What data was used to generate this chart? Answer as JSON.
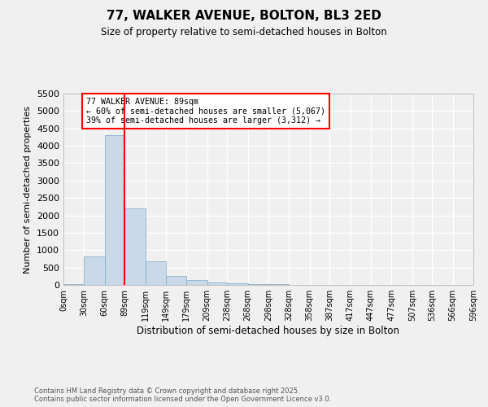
{
  "title": "77, WALKER AVENUE, BOLTON, BL3 2ED",
  "subtitle": "Size of property relative to semi-detached houses in Bolton",
  "xlabel": "Distribution of semi-detached houses by size in Bolton",
  "ylabel": "Number of semi-detached properties",
  "bin_edges": [
    0,
    30,
    60,
    89,
    119,
    149,
    179,
    209,
    238,
    268,
    298,
    328,
    358,
    387,
    417,
    447,
    477,
    507,
    536,
    566,
    596
  ],
  "bar_heights": [
    30,
    830,
    4300,
    2200,
    680,
    250,
    130,
    70,
    40,
    30,
    15,
    8,
    4,
    2,
    1,
    1,
    0,
    0,
    0,
    0
  ],
  "bar_color": "#c9d9e8",
  "bar_edge_color": "#7baac7",
  "red_line_x": 89,
  "annotation_title": "77 WALKER AVENUE: 89sqm",
  "annotation_line1": "← 60% of semi-detached houses are smaller (5,067)",
  "annotation_line2": "39% of semi-detached houses are larger (3,312) →",
  "ylim": [
    0,
    5500
  ],
  "yticks": [
    0,
    500,
    1000,
    1500,
    2000,
    2500,
    3000,
    3500,
    4000,
    4500,
    5000,
    5500
  ],
  "xlim": [
    0,
    596
  ],
  "background_color": "#f0f0f0",
  "grid_color": "#ffffff",
  "footer_line1": "Contains HM Land Registry data © Crown copyright and database right 2025.",
  "footer_line2": "Contains public sector information licensed under the Open Government Licence v3.0."
}
